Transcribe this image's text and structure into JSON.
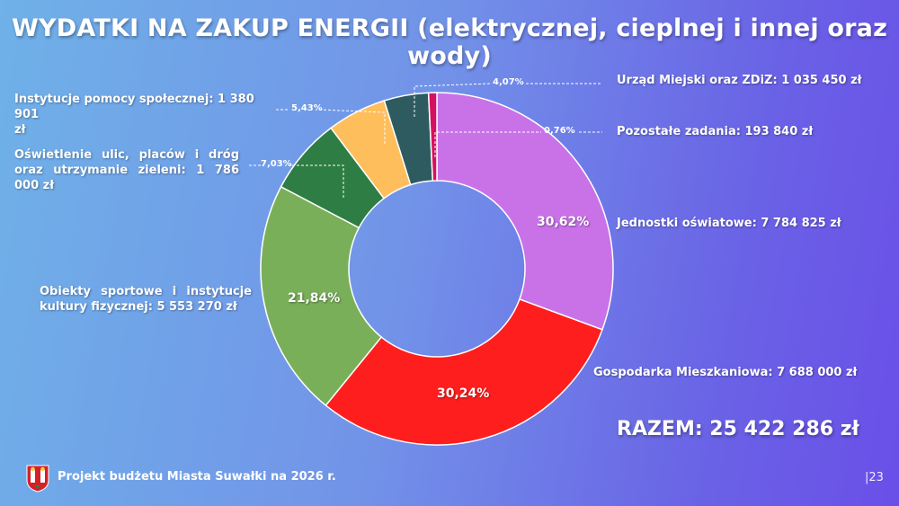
{
  "title": "WYDATKI NA ZAKUP ENERGII (elektrycznej, cieplnej i innej oraz wody)",
  "total": "RAZEM: 25 422 286 zł",
  "footer": "Projekt budżetu Miasta Suwałki na 2026 r.",
  "page_number": "|23",
  "colors": {
    "jednostki": "#c972e8",
    "gospodarka": "#ff1e1e",
    "obiekty": "#7aaf5a",
    "oswietlenie": "#2e7d45",
    "instytucje": "#ffbe5c",
    "urzad": "#2d5b60",
    "pozostale": "#d6105f"
  },
  "chart_data": {
    "type": "donut",
    "title": "WYDATKI NA ZAKUP ENERGII (elektrycznej, cieplnej i innej oraz wody)",
    "slices": [
      {
        "key": "jednostki",
        "label": "Jednostki oświatowe: 7 784 825 zł",
        "value": 7784825,
        "pct": "30,62%"
      },
      {
        "key": "gospodarka",
        "label": "Gospodarka Mieszkaniowa: 7 688 000 zł",
        "value": 7688000,
        "pct": "30,24%"
      },
      {
        "key": "obiekty",
        "label": "Obiekty sportowe i instytucje kultury fizycznej: 5 553 270 zł",
        "value": 5553270,
        "pct": "21,84%"
      },
      {
        "key": "oswietlenie",
        "label": "Oświetlenie ulic, placów i dróg oraz utrzymanie zieleni: 1 786 000 zł",
        "value": 1786000,
        "pct": "7,03%"
      },
      {
        "key": "instytucje",
        "label": "Instytucje pomocy społecznej: 1 380 901 zł",
        "value": 1380901,
        "pct": "5,43%"
      },
      {
        "key": "urzad",
        "label": "Urząd Miejski oraz ZDiZ: 1 035 450 zł",
        "value": 1035450,
        "pct": "4,07%"
      },
      {
        "key": "pozostale",
        "label": "Pozostałe zadania: 193 840 zł",
        "value": 193840,
        "pct": "0,76%"
      }
    ],
    "total": 25422286,
    "start_angle": "12 o'clock, clockwise"
  },
  "labels": {
    "urzad": "Urząd Miejski oraz ZDiZ: 1 035 450 zł",
    "pozostale": "Pozostałe zadania: 193 840 zł",
    "jednostki": "Jednostki oświatowe: 7 784 825 zł",
    "gospodarka": "Gospodarka Mieszkaniowa: 7 688 000 zł",
    "instytucje_line1": "Instytucje pomocy społecznej: 1 380 901",
    "instytucje_line2": "zł",
    "oswietlenie_line1": "Oświetlenie ulic, placów i dróg",
    "oswietlenie_line2": "oraz utrzymanie zieleni: 1 786 000 zł",
    "obiekty_line1": "Obiekty sportowe i instytucje",
    "obiekty_line2": "kultury fizycznej: 5 553 270 zł"
  }
}
